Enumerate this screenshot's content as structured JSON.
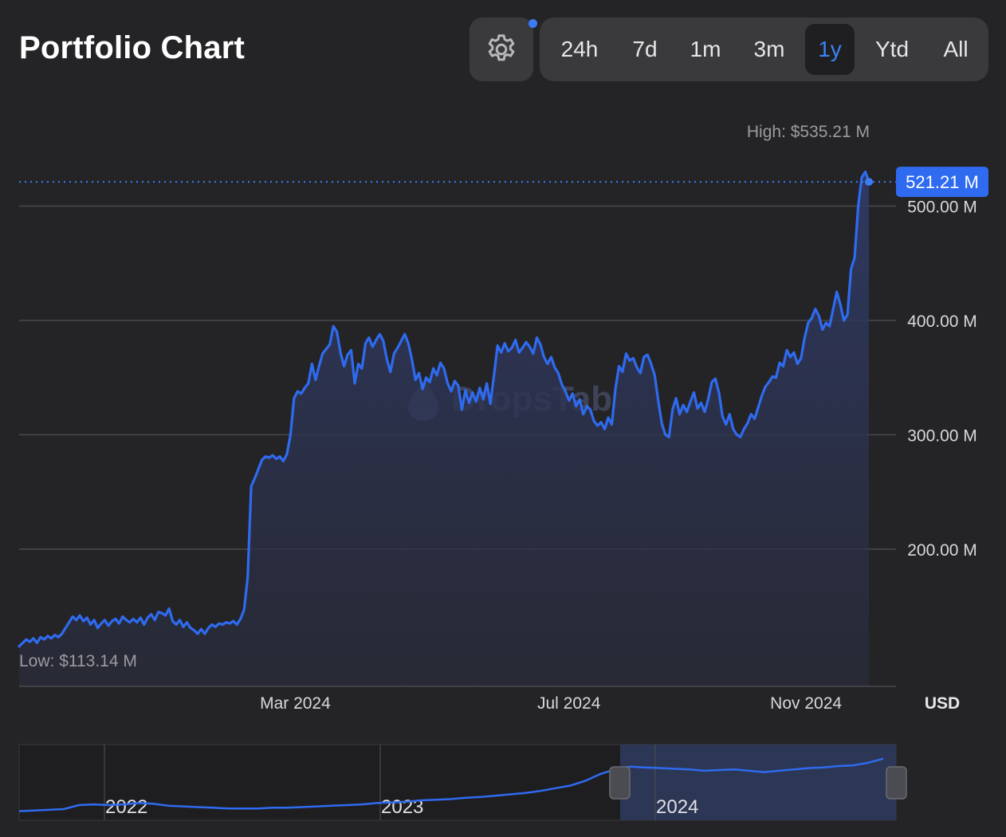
{
  "header": {
    "title": "Portfolio Chart",
    "settings_icon": "gear-icon"
  },
  "ranges": [
    {
      "label": "24h",
      "active": false
    },
    {
      "label": "7d",
      "active": false
    },
    {
      "label": "1m",
      "active": false
    },
    {
      "label": "3m",
      "active": false
    },
    {
      "label": "1y",
      "active": true
    },
    {
      "label": "Ytd",
      "active": false
    },
    {
      "label": "All",
      "active": false
    }
  ],
  "colors": {
    "line": "#2f6bf0",
    "accent": "#3b7cf5",
    "grid": "#4a4a4e",
    "background": "#242427"
  },
  "chart_data": {
    "type": "area",
    "watermark": "DropsTab",
    "high_label": "High: $535.21 M",
    "low_label": "Low: $113.14 M",
    "current_label": "521.21 M",
    "current_value": 521.21,
    "currency": "USD",
    "y_ticks": [
      {
        "value": 200,
        "label": "200.00 M"
      },
      {
        "value": 300,
        "label": "300.00 M"
      },
      {
        "value": 400,
        "label": "400.00 M"
      },
      {
        "value": 500,
        "label": "500.00 M"
      }
    ],
    "x_ticks": [
      {
        "label": "Mar 2024",
        "t": 0.325
      },
      {
        "label": "Jul 2024",
        "t": 0.647
      },
      {
        "label": "Nov 2024",
        "t": 0.926
      }
    ],
    "ylim": [
      80,
      545
    ],
    "series": [
      {
        "values": [
          115,
          118,
          121,
          119,
          122,
          118,
          123,
          121,
          124,
          122,
          125,
          123,
          126,
          131,
          136,
          141,
          138,
          142,
          137,
          140,
          134,
          138,
          131,
          135,
          138,
          133,
          137,
          139,
          135,
          141,
          138,
          136,
          139,
          136,
          140,
          134,
          140,
          143,
          138,
          145,
          144,
          142,
          148,
          137,
          134,
          138,
          132,
          136,
          131,
          129,
          126,
          130,
          126,
          131,
          134,
          132,
          135,
          134,
          136,
          135,
          137,
          134,
          139,
          147,
          175,
          255,
          262,
          270,
          278,
          281,
          280,
          282,
          279,
          281,
          277,
          283,
          300,
          332,
          338,
          336,
          341,
          345,
          362,
          348,
          360,
          371,
          375,
          379,
          395,
          390,
          372,
          360,
          370,
          374,
          345,
          362,
          358,
          380,
          385,
          377,
          383,
          388,
          382,
          366,
          355,
          371,
          376,
          382,
          388,
          380,
          366,
          348,
          354,
          340,
          350,
          346,
          358,
          352,
          363,
          358,
          345,
          338,
          347,
          343,
          322,
          339,
          328,
          337,
          329,
          341,
          331,
          345,
          327,
          352,
          378,
          372,
          380,
          373,
          376,
          383,
          372,
          376,
          381,
          377,
          371,
          385,
          379,
          368,
          362,
          368,
          359,
          354,
          344,
          338,
          330,
          336,
          325,
          331,
          318,
          325,
          322,
          312,
          308,
          311,
          305,
          315,
          309,
          340,
          360,
          355,
          371,
          365,
          367,
          359,
          354,
          368,
          370,
          362,
          352,
          330,
          310,
          300,
          298,
          322,
          332,
          318,
          326,
          320,
          329,
          337,
          323,
          328,
          320,
          331,
          346,
          349,
          337,
          316,
          309,
          318,
          305,
          300,
          298,
          305,
          310,
          318,
          314,
          324,
          334,
          342,
          346,
          351,
          350,
          363,
          360,
          374,
          368,
          372,
          362,
          367,
          385,
          398,
          402,
          410,
          404,
          392,
          398,
          395,
          410,
          425,
          414,
          400,
          405,
          445,
          455,
          500,
          525,
          530,
          521.21
        ]
      }
    ],
    "navigator": {
      "year_labels": [
        "2022",
        "2023",
        "2024"
      ],
      "values": [
        10,
        11,
        12,
        13,
        19,
        20,
        19,
        20,
        22,
        21,
        18,
        17,
        16,
        15,
        14,
        14,
        14,
        15,
        15,
        16,
        17,
        18,
        19,
        20,
        22,
        23,
        24,
        26,
        27,
        28,
        30,
        31,
        33,
        35,
        37,
        40,
        44,
        48,
        55,
        65,
        72,
        76,
        75,
        74,
        73,
        72,
        70,
        71,
        72,
        70,
        68,
        70,
        72,
        74,
        75,
        77,
        78,
        82,
        88
      ]
    }
  }
}
